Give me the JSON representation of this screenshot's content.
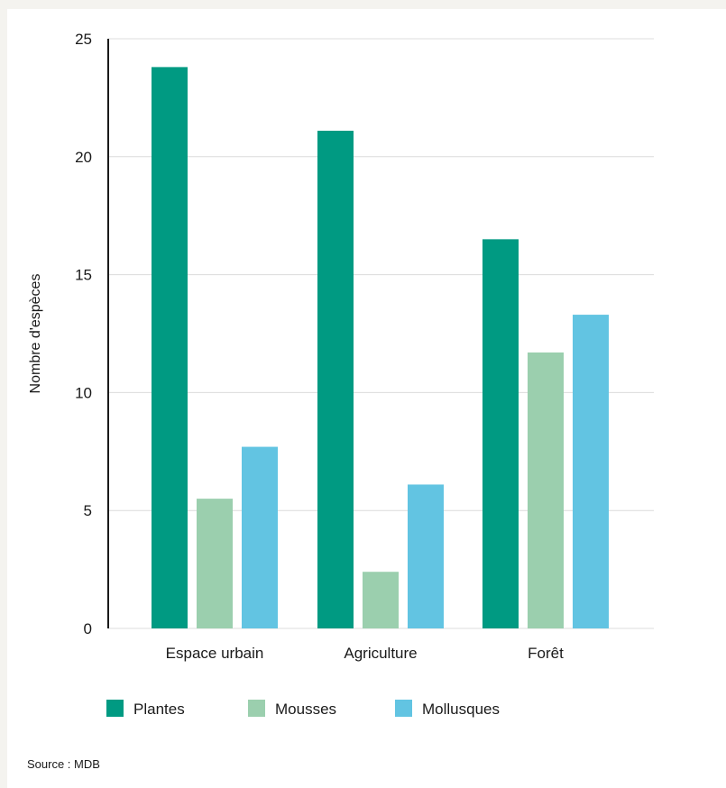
{
  "chart_data": {
    "type": "bar",
    "categories": [
      "Espace urbain",
      "Agriculture",
      "Forêt"
    ],
    "series": [
      {
        "name": "Plantes",
        "color": "#009a82",
        "values": [
          23.8,
          21.1,
          16.5
        ]
      },
      {
        "name": "Mousses",
        "color": "#9bcfae",
        "values": [
          5.5,
          2.4,
          11.7
        ]
      },
      {
        "name": "Mollusques",
        "color": "#62c4e2",
        "values": [
          7.7,
          6.1,
          13.3
        ]
      }
    ],
    "ylabel": "Nombre d'espèces",
    "xlabel": "",
    "ylim": [
      0,
      25
    ],
    "yticks": [
      0,
      5,
      10,
      15,
      20,
      25
    ],
    "grid": true,
    "legend_position": "bottom-left"
  },
  "source": "Source : MDB"
}
